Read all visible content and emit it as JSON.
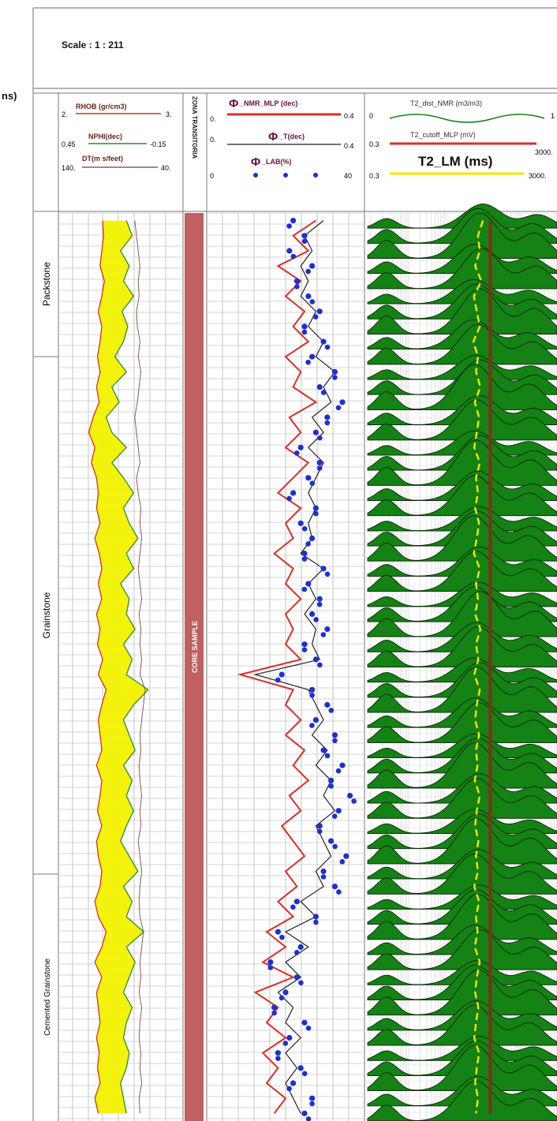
{
  "header": {
    "scale_label": "Scale : 1 : 211",
    "corner_fragment": "ns)"
  },
  "tracks": {
    "track1": {
      "curves": [
        {
          "name": "RHOB (gr/cm3)",
          "min": "2.",
          "max": "3.",
          "color": "#c0392b"
        },
        {
          "name": "NPHI(dec)",
          "min": "0.45",
          "max": "-0.15",
          "color": "#2e8b2e"
        },
        {
          "name": "DT(m s/feet)",
          "min": "140.",
          "max": "40.",
          "color": "#8b5a5a"
        }
      ]
    },
    "track2": {
      "name": "ZONA TRANSITORIA",
      "core_label": "CORE SAMPLE",
      "core_color": "#c0605f"
    },
    "track3": {
      "curves": [
        {
          "name": "_NMR_MLP (dec)",
          "min": "0.",
          "max": "0.4",
          "color": "#d9302a"
        },
        {
          "name": "_T(dec)",
          "min": "0.",
          "max": "0.4",
          "color": "#222222"
        },
        {
          "name": "_LAB(%)",
          "min": "0",
          "max": "40",
          "color": "#1f2fd0"
        }
      ],
      "phi_symbol": "Φ"
    },
    "track4": {
      "curves": [
        {
          "name": "T2_dist_NMR (m3/m3)",
          "min": "0",
          "max": "1",
          "color": "#1a7a1a"
        },
        {
          "name": "T2_cutoff_MLP (mV)",
          "min": "0.3",
          "max": "3000.",
          "color": "#d9302a"
        },
        {
          "name": "T2_LM (ms)",
          "min": "0.3",
          "max": "3000.",
          "color": "#f2e600"
        }
      ],
      "fill_color": "#148214",
      "cutoff_color": "#8b2a1a"
    }
  },
  "lithology": [
    {
      "name": "Packstone"
    },
    {
      "name": "Grainstone"
    },
    {
      "name": "Cemented Grainstone"
    }
  ],
  "chart_data": {
    "type": "line",
    "title": "",
    "samples": 60,
    "series": [
      {
        "name": "RHOB (gr/cm3)",
        "unit_range": [
          2.0,
          3.0
        ],
        "values": [
          2.31,
          2.32,
          2.3,
          2.28,
          2.33,
          2.3,
          2.26,
          2.3,
          2.28,
          2.25,
          2.28,
          2.24,
          2.27,
          2.2,
          2.15,
          2.22,
          2.18,
          2.24,
          2.26,
          2.24,
          2.28,
          2.22,
          2.27,
          2.3,
          2.26,
          2.3,
          2.24,
          2.28,
          2.25,
          2.31,
          2.26,
          2.35,
          2.3,
          2.26,
          2.28,
          2.3,
          2.24,
          2.3,
          2.28,
          2.25,
          2.3,
          2.24,
          2.26,
          2.3,
          2.28,
          2.22,
          2.26,
          2.35,
          2.3,
          2.22,
          2.3,
          2.24,
          2.26,
          2.28,
          2.24,
          2.27,
          2.25,
          2.28,
          2.22,
          2.26
        ]
      },
      {
        "name": "NPHI(dec)",
        "unit_range": [
          0.45,
          -0.15
        ],
        "values": [
          0.1,
          0.06,
          0.14,
          0.08,
          0.12,
          0.05,
          0.13,
          0.09,
          0.12,
          0.18,
          0.1,
          0.2,
          0.15,
          0.24,
          0.2,
          0.1,
          0.2,
          0.12,
          0.05,
          0.12,
          0.08,
          0.02,
          0.1,
          0.05,
          0.14,
          0.08,
          0.1,
          0.04,
          0.12,
          0.06,
          0.1,
          -0.05,
          0.05,
          0.12,
          0.08,
          0.04,
          0.12,
          0.06,
          0.1,
          0.05,
          0.1,
          0.14,
          0.08,
          0.02,
          0.12,
          0.06,
          0.1,
          -0.02,
          0.1,
          0.04,
          0.08,
          0.12,
          0.06,
          0.1,
          0.12,
          0.08,
          0.1,
          0.14,
          0.12,
          0.1
        ]
      },
      {
        "name": "DT(m s/feet)",
        "unit_range": [
          140,
          40
        ],
        "values": [
          72,
          70,
          68,
          66,
          68,
          67,
          70,
          69,
          66,
          68,
          65,
          67,
          69,
          72,
          70,
          68,
          66,
          70,
          68,
          65,
          66,
          64,
          66,
          68,
          66,
          64,
          67,
          65,
          66,
          64,
          66,
          60,
          62,
          64,
          66,
          65,
          67,
          66,
          64,
          66,
          65,
          68,
          66,
          64,
          66,
          67,
          66,
          62,
          64,
          66,
          65,
          67,
          64,
          66,
          67,
          65,
          66,
          64,
          67,
          66
        ]
      },
      {
        "name": "_NMR_MLP (dec)",
        "unit_range": [
          0,
          0.4
        ],
        "values": [
          0.28,
          0.22,
          0.26,
          0.18,
          0.24,
          0.2,
          0.25,
          0.22,
          0.26,
          0.2,
          0.24,
          0.22,
          0.28,
          0.21,
          0.24,
          0.2,
          0.26,
          0.22,
          0.18,
          0.24,
          0.2,
          0.22,
          0.17,
          0.22,
          0.2,
          0.24,
          0.2,
          0.22,
          0.2,
          0.24,
          0.08,
          0.22,
          0.2,
          0.24,
          0.2,
          0.25,
          0.22,
          0.26,
          0.21,
          0.24,
          0.19,
          0.22,
          0.25,
          0.2,
          0.23,
          0.18,
          0.22,
          0.15,
          0.2,
          0.14,
          0.22,
          0.12,
          0.18,
          0.15,
          0.2,
          0.14,
          0.18,
          0.15,
          0.2,
          0.17
        ]
      },
      {
        "name": "_T(dec)",
        "unit_range": [
          0,
          0.4
        ],
        "values": [
          0.3,
          0.25,
          0.27,
          0.24,
          0.26,
          0.24,
          0.28,
          0.26,
          0.3,
          0.28,
          0.33,
          0.3,
          0.32,
          0.27,
          0.3,
          0.26,
          0.3,
          0.28,
          0.26,
          0.28,
          0.26,
          0.27,
          0.24,
          0.3,
          0.26,
          0.28,
          0.25,
          0.28,
          0.27,
          0.29,
          0.12,
          0.26,
          0.28,
          0.3,
          0.27,
          0.31,
          0.28,
          0.32,
          0.3,
          0.33,
          0.28,
          0.3,
          0.32,
          0.28,
          0.3,
          0.24,
          0.28,
          0.2,
          0.26,
          0.2,
          0.24,
          0.18,
          0.22,
          0.2,
          0.24,
          0.2,
          0.23,
          0.2,
          0.22,
          0.24
        ]
      },
      {
        "name": "_LAB(%)",
        "unit_range": [
          0,
          40
        ],
        "values": [
          22,
          25,
          21,
          27,
          23,
          26,
          29,
          25,
          30,
          27,
          33,
          29,
          35,
          31,
          28,
          24,
          29,
          26,
          22,
          28,
          24,
          27,
          25,
          30,
          26,
          29,
          27,
          31,
          25,
          28,
          19,
          27,
          31,
          28,
          33,
          30,
          35,
          32,
          37,
          34,
          29,
          32,
          36,
          30,
          33,
          23,
          28,
          18,
          24,
          16,
          23,
          20,
          17,
          25,
          21,
          18,
          24,
          22,
          27,
          25
        ]
      },
      {
        "name": "T2_LM (ms)",
        "unit_range": [
          0.3,
          3000
        ],
        "values": [
          70,
          55,
          60,
          48,
          65,
          45,
          52,
          60,
          44,
          55,
          50,
          62,
          47,
          58,
          52,
          46,
          60,
          50,
          55,
          48,
          58,
          52,
          45,
          60,
          50,
          55,
          48,
          62,
          50,
          56,
          46,
          60,
          52,
          48,
          58,
          50,
          54,
          47,
          60,
          52,
          48,
          56,
          50,
          55,
          46,
          58,
          50,
          54,
          47,
          60,
          52,
          48,
          56,
          50,
          46,
          58,
          52,
          48,
          55,
          50
        ]
      },
      {
        "name": "T2_cutoff_MLP (mV)",
        "unit_range": [
          0.3,
          3000
        ],
        "values": [
          100,
          100,
          100,
          100,
          100,
          100,
          100,
          100,
          100,
          100,
          100,
          100,
          100,
          100,
          100,
          100,
          100,
          100,
          100,
          100,
          100,
          100,
          100,
          100,
          100,
          100,
          100,
          100,
          100,
          100,
          100,
          100,
          100,
          100,
          100,
          100,
          100,
          100,
          100,
          100,
          100,
          100,
          100,
          100,
          100,
          100,
          100,
          100,
          100,
          100,
          100,
          100,
          100,
          100,
          100,
          100,
          100,
          100,
          100,
          100
        ]
      }
    ]
  }
}
